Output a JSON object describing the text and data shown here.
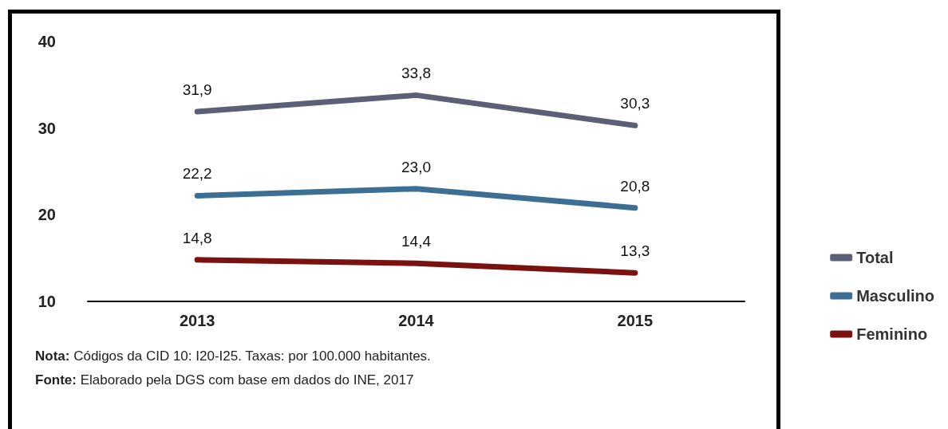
{
  "chart_data": {
    "type": "line",
    "categories": [
      "2013",
      "2014",
      "2015"
    ],
    "series": [
      {
        "name": "Total",
        "color": "#5b6077",
        "values": [
          31.9,
          33.8,
          30.3
        ],
        "value_labels": [
          "31,9",
          "33,8",
          "30,3"
        ]
      },
      {
        "name": "Masculino",
        "color": "#3d6e94",
        "values": [
          22.2,
          23.0,
          20.8
        ],
        "value_labels": [
          "22,2",
          "23,0",
          "20,8"
        ]
      },
      {
        "name": "Feminino",
        "color": "#7a1212",
        "values": [
          14.8,
          14.4,
          13.3
        ],
        "value_labels": [
          "14,8",
          "14,4",
          "13,3"
        ]
      }
    ],
    "ylim": [
      10,
      40
    ],
    "yticks": [
      10,
      20,
      30,
      40
    ],
    "grid": false,
    "legend": "right",
    "marker": "none",
    "line_style": "solid",
    "annotations": [
      "Nota: Códigos da CID 10: I20-I25. Taxas: por 100.000 habitantes.",
      "Fonte: Elaborado pela DGS com base em dados do INE, 2017"
    ]
  }
}
